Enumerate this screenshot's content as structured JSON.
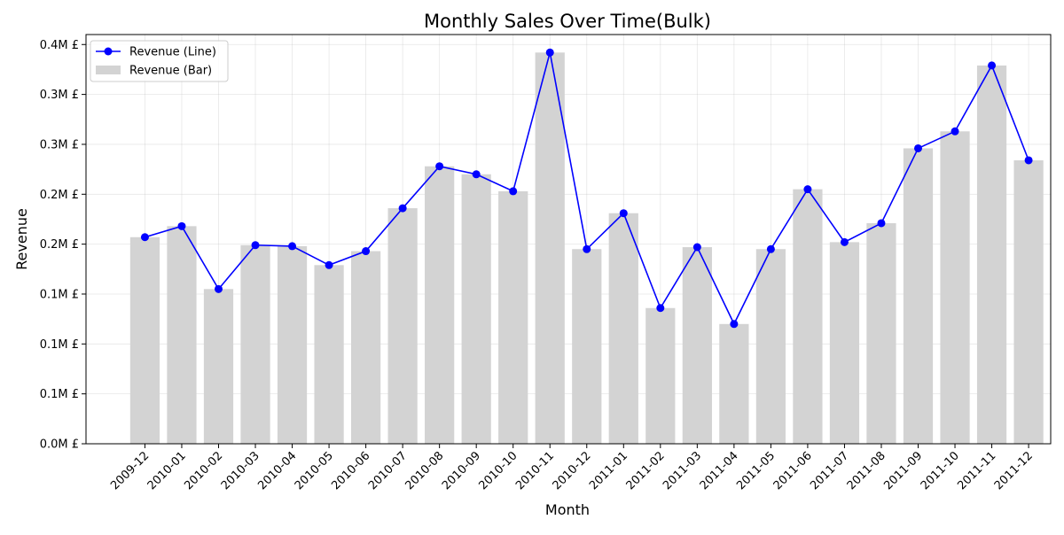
{
  "chart_data": {
    "type": "bar",
    "title": "Monthly Sales Over Time(Bulk)",
    "xlabel": "Month",
    "ylabel": "Revenue",
    "categories": [
      "2009-12",
      "2010-01",
      "2010-02",
      "2010-03",
      "2010-04",
      "2010-05",
      "2010-06",
      "2010-07",
      "2010-08",
      "2010-09",
      "2010-10",
      "2010-11",
      "2010-12",
      "2011-01",
      "2011-02",
      "2011-03",
      "2011-04",
      "2011-05",
      "2011-06",
      "2011-07",
      "2011-08",
      "2011-09",
      "2011-10",
      "2011-11",
      "2011-12"
    ],
    "ylim": [
      0,
      0.41
    ],
    "y_unit": "M £",
    "y_ticks": [
      0,
      0.05,
      0.1,
      0.15,
      0.2,
      0.25,
      0.3,
      0.35,
      0.4
    ],
    "y_tick_labels": [
      "0.0M £",
      "0.1M £",
      "0.1M £",
      "0.1M £",
      "0.2M £",
      "0.2M £",
      "0.3M £",
      "0.3M £",
      "0.4M £"
    ],
    "series": [
      {
        "name": "Revenue (Line)",
        "type": "line",
        "color": "#0000ff",
        "marker": "circle",
        "values": [
          0.207,
          0.218,
          0.155,
          0.199,
          0.198,
          0.179,
          0.193,
          0.236,
          0.278,
          0.27,
          0.253,
          0.392,
          0.195,
          0.231,
          0.136,
          0.197,
          0.12,
          0.195,
          0.255,
          0.202,
          0.221,
          0.296,
          0.313,
          0.379,
          0.284
        ]
      },
      {
        "name": "Revenue (Bar)",
        "type": "bar",
        "color": "#d3d3d3",
        "values": [
          0.207,
          0.218,
          0.155,
          0.199,
          0.198,
          0.179,
          0.193,
          0.236,
          0.278,
          0.27,
          0.253,
          0.392,
          0.195,
          0.231,
          0.136,
          0.197,
          0.12,
          0.195,
          0.255,
          0.202,
          0.221,
          0.296,
          0.313,
          0.379,
          0.284
        ]
      }
    ],
    "grid": true,
    "legend_position": "top-left"
  }
}
